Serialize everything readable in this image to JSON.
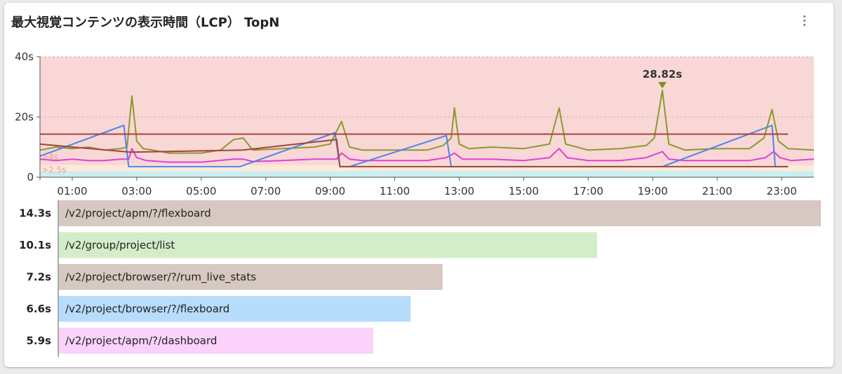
{
  "card": {
    "title": "最大視覚コンテンツの表示時間（LCP） TopN"
  },
  "chart_data": [
    {
      "type": "line",
      "y_unit": "s",
      "ylim": [
        0,
        40
      ],
      "y_ticks": [
        "0",
        "20s",
        "40s"
      ],
      "x_ticks": [
        "01:00",
        "03:00",
        "05:00",
        "07:00",
        "09:00",
        "11:00",
        "13:00",
        "15:00",
        "17:00",
        "19:00",
        "21:00",
        "23:00"
      ],
      "xlim_hours": [
        0,
        24
      ],
      "grid": true,
      "bands": [
        {
          "from": 0,
          "to": 2,
          "color": "#c8eef1"
        },
        {
          "from": 2,
          "to": 4,
          "color": "#fde9d9"
        },
        {
          "from": 4,
          "to": 40,
          "color": "#f9d7d6"
        }
      ],
      "thresholds": [
        {
          "label": ">4s",
          "value": 4
        },
        {
          "label": ">2.5s",
          "value": 2.5
        }
      ],
      "annotation": {
        "text": "28.82s",
        "x": 19.3,
        "y": 28.82
      },
      "series": [
        {
          "color": "#8a9a2c",
          "points": [
            [
              0,
              9
            ],
            [
              0.5,
              10
            ],
            [
              1,
              9.5
            ],
            [
              1.5,
              10
            ],
            [
              2,
              9
            ],
            [
              2.5,
              9.5
            ],
            [
              2.7,
              10
            ],
            [
              2.85,
              27
            ],
            [
              3.0,
              12
            ],
            [
              3.2,
              9.5
            ],
            [
              3.5,
              9
            ],
            [
              4,
              8
            ],
            [
              5,
              8
            ],
            [
              5.6,
              9
            ],
            [
              6,
              12.5
            ],
            [
              6.3,
              13
            ],
            [
              6.6,
              9
            ],
            [
              7.5,
              9.5
            ],
            [
              8.5,
              10
            ],
            [
              9.0,
              11
            ],
            [
              9.35,
              18.5
            ],
            [
              9.6,
              10
            ],
            [
              10,
              9
            ],
            [
              11,
              9
            ],
            [
              12,
              9
            ],
            [
              12.5,
              10.5
            ],
            [
              12.75,
              13
            ],
            [
              12.85,
              23
            ],
            [
              13.0,
              11
            ],
            [
              13.3,
              9.5
            ],
            [
              14,
              10
            ],
            [
              15,
              9.5
            ],
            [
              15.8,
              11
            ],
            [
              16.1,
              23
            ],
            [
              16.3,
              11
            ],
            [
              17,
              9
            ],
            [
              18,
              9.5
            ],
            [
              18.8,
              10.5
            ],
            [
              19.05,
              13
            ],
            [
              19.3,
              28.8
            ],
            [
              19.5,
              11
            ],
            [
              20,
              9
            ],
            [
              21,
              9.5
            ],
            [
              22,
              9.5
            ],
            [
              22.45,
              13
            ],
            [
              22.7,
              22.5
            ],
            [
              22.9,
              12
            ],
            [
              23.2,
              9.5
            ],
            [
              24,
              9
            ]
          ]
        },
        {
          "color": "#e040d8",
          "points": [
            [
              0,
              6
            ],
            [
              0.5,
              5.5
            ],
            [
              1,
              6
            ],
            [
              1.5,
              5.5
            ],
            [
              2,
              5.5
            ],
            [
              2.5,
              6
            ],
            [
              2.75,
              6
            ],
            [
              2.85,
              9.5
            ],
            [
              3.0,
              6.5
            ],
            [
              3.3,
              5.5
            ],
            [
              4,
              5
            ],
            [
              5,
              5
            ],
            [
              6,
              6
            ],
            [
              6.3,
              6
            ],
            [
              6.6,
              5.2
            ],
            [
              7.5,
              5.5
            ],
            [
              8.5,
              6
            ],
            [
              9.2,
              6
            ],
            [
              9.35,
              8
            ],
            [
              9.6,
              6
            ],
            [
              10,
              5.5
            ],
            [
              11,
              5.5
            ],
            [
              12,
              5.5
            ],
            [
              12.6,
              6.5
            ],
            [
              12.85,
              8
            ],
            [
              13.1,
              6
            ],
            [
              14,
              6
            ],
            [
              15,
              5.5
            ],
            [
              15.8,
              6.5
            ],
            [
              16.1,
              9.5
            ],
            [
              16.35,
              6.5
            ],
            [
              17,
              5.5
            ],
            [
              18,
              5.5
            ],
            [
              18.8,
              6.5
            ],
            [
              19.05,
              7.5
            ],
            [
              19.3,
              8.5
            ],
            [
              19.5,
              6
            ],
            [
              20,
              5.5
            ],
            [
              21,
              5.5
            ],
            [
              22,
              5.5
            ],
            [
              22.5,
              6.5
            ],
            [
              22.75,
              8.5
            ],
            [
              22.95,
              6.5
            ],
            [
              23.3,
              5.5
            ],
            [
              24,
              6
            ]
          ]
        },
        {
          "color": "#4a86e8",
          "points": [
            [
              0,
              7
            ],
            [
              2.6,
              17.2
            ],
            [
              2.75,
              3.5
            ],
            [
              6.2,
              3.5
            ],
            [
              9.15,
              14.8
            ],
            [
              9.3,
              3.5
            ],
            [
              9.6,
              3.5
            ],
            [
              12.6,
              13.8
            ],
            [
              12.75,
              3.5
            ],
            [
              19.3,
              3.5
            ],
            [
              22.7,
              17.2
            ],
            [
              22.8,
              3.5
            ],
            [
              23.2,
              3.5
            ]
          ]
        },
        {
          "color": "#a0453c",
          "points": [
            [
              0,
              11
            ],
            [
              2.8,
              8.3
            ],
            [
              6.3,
              9
            ],
            [
              9.2,
              12.5
            ],
            [
              9.3,
              3.5
            ],
            [
              23.2,
              3.5
            ]
          ]
        },
        {
          "color": "#a0453c",
          "points": [
            [
              0,
              14.3
            ],
            [
              23.2,
              14.3
            ]
          ]
        }
      ]
    },
    {
      "type": "bar",
      "orientation": "horizontal",
      "xlim": [
        0,
        14.3
      ],
      "categories": [
        "/v2/project/apm/?/flexboard",
        "/v2/group/project/list",
        "/v2/project/browser/?/rum_live_stats",
        "/v2/project/browser/?/flexboard",
        "/v2/project/apm/?/dashboard"
      ],
      "values": [
        14.3,
        10.1,
        7.2,
        6.6,
        5.9
      ],
      "value_labels": [
        "14.3s",
        "10.1s",
        "7.2s",
        "6.6s",
        "5.9s"
      ],
      "colors": [
        "#d7c8c2",
        "#d4edc8",
        "#d7c8c2",
        "#b8dcfc",
        "#fad2fa"
      ]
    }
  ]
}
